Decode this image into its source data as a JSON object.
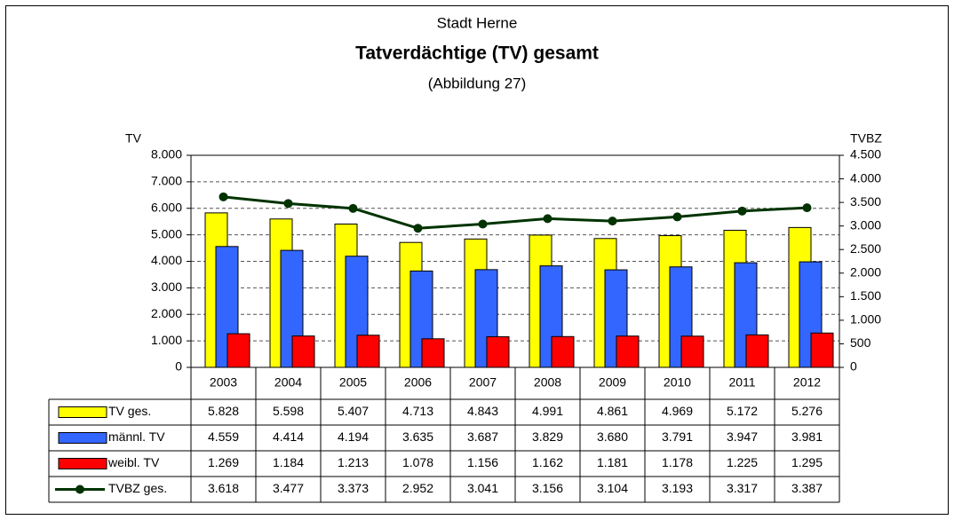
{
  "chart_data": {
    "type": "bar",
    "title": "Tatverdächtige (TV) gesamt",
    "supertitle": "Stadt Herne",
    "subtitle": "(Abbildung 27)",
    "ylabel": "TV",
    "y2label": "TVBZ",
    "categories": [
      "2003",
      "2004",
      "2005",
      "2006",
      "2007",
      "2008",
      "2009",
      "2010",
      "2011",
      "2012"
    ],
    "series": [
      {
        "name": "TV ges.",
        "color": "#ffff00",
        "type": "bar",
        "values": [
          5828,
          5598,
          5407,
          4713,
          4843,
          4991,
          4861,
          4969,
          5172,
          5276
        ],
        "value_labels": [
          "5.828",
          "5.598",
          "5.407",
          "4.713",
          "4.843",
          "4.991",
          "4.861",
          "4.969",
          "5.172",
          "5.276"
        ]
      },
      {
        "name": "männl. TV",
        "color": "#3366ff",
        "type": "bar",
        "values": [
          4559,
          4414,
          4194,
          3635,
          3687,
          3829,
          3680,
          3791,
          3947,
          3981
        ],
        "value_labels": [
          "4.559",
          "4.414",
          "4.194",
          "3.635",
          "3.687",
          "3.829",
          "3.680",
          "3.791",
          "3.947",
          "3.981"
        ]
      },
      {
        "name": "weibl. TV",
        "color": "#ff0000",
        "type": "bar",
        "values": [
          1269,
          1184,
          1213,
          1078,
          1156,
          1162,
          1181,
          1178,
          1225,
          1295
        ],
        "value_labels": [
          "1.269",
          "1.184",
          "1.213",
          "1.078",
          "1.156",
          "1.162",
          "1.181",
          "1.178",
          "1.225",
          "1.295"
        ]
      },
      {
        "name": "TVBZ ges.",
        "color": "#003300",
        "type": "line",
        "axis": "y2",
        "values": [
          3618,
          3477,
          3373,
          2952,
          3041,
          3156,
          3104,
          3193,
          3317,
          3387
        ],
        "value_labels": [
          "3.618",
          "3.477",
          "3.373",
          "2.952",
          "3.041",
          "3.156",
          "3.104",
          "3.193",
          "3.317",
          "3.387"
        ]
      }
    ],
    "ylim": [
      0,
      8000
    ],
    "yticks": [
      0,
      {
        "value": 1000,
        "label": "1.000"
      },
      {
        "value": 2000,
        "label": "2.000"
      },
      {
        "value": 3000,
        "label": "3.000"
      },
      {
        "value": 4000,
        "label": "4.000"
      },
      {
        "value": 5000,
        "label": "5.000"
      },
      {
        "value": 6000,
        "label": "6.000"
      },
      {
        "value": 7000,
        "label": "7.000"
      },
      {
        "value": 8000,
        "label": "8.000"
      }
    ],
    "y2lim": [
      0,
      4500
    ],
    "y2ticks": [
      0,
      500,
      {
        "value": 1000,
        "label": "1.000"
      },
      {
        "value": 1500,
        "label": "1.500"
      },
      {
        "value": 2000,
        "label": "2.000"
      },
      {
        "value": 2500,
        "label": "2.500"
      },
      {
        "value": 3000,
        "label": "3.000"
      },
      {
        "value": 3500,
        "label": "3.500"
      },
      {
        "value": 4000,
        "label": "4.000"
      },
      {
        "value": 4500,
        "label": "4.500"
      }
    ],
    "grid": true
  }
}
